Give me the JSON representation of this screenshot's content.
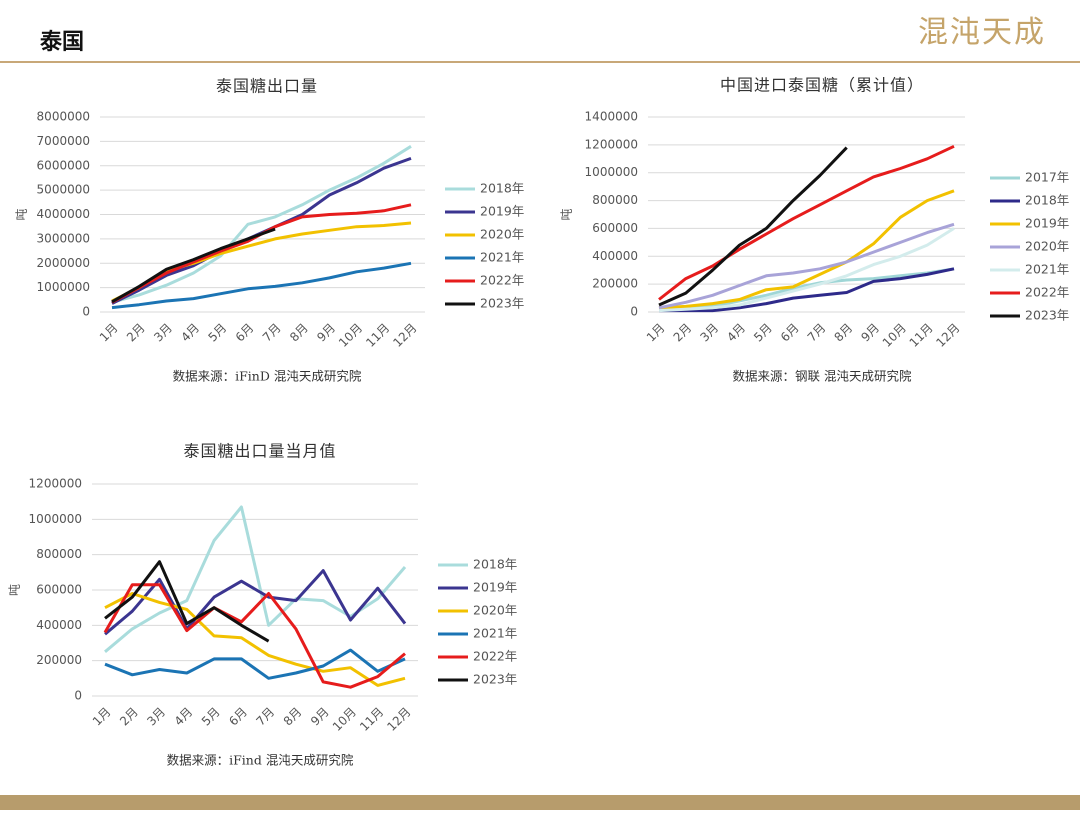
{
  "header": {
    "title": "泰国",
    "logo": "混沌天成"
  },
  "chart_data": [
    {
      "type": "line",
      "title": "泰国糖出口量",
      "y_label": "吨",
      "source": "数据来源：iFinD 混沌天成研究院",
      "categories": [
        "1月",
        "2月",
        "3月",
        "4月",
        "5月",
        "6月",
        "7月",
        "8月",
        "9月",
        "10月",
        "11月",
        "12月"
      ],
      "ylim": [
        0,
        8000000
      ],
      "yticks": [
        0,
        1000000,
        2000000,
        3000000,
        4000000,
        5000000,
        6000000,
        7000000,
        8000000
      ],
      "grid": true,
      "series": [
        {
          "name": "2018年",
          "color": "#a9dcdc",
          "values": [
            400000,
            700000,
            1100000,
            1600000,
            2300000,
            3600000,
            3900000,
            4400000,
            5000000,
            5500000,
            6100000,
            6800000
          ]
        },
        {
          "name": "2019年",
          "color": "#3b3590",
          "values": [
            350000,
            900000,
            1500000,
            1900000,
            2500000,
            3000000,
            3500000,
            4000000,
            4800000,
            5300000,
            5900000,
            6300000
          ]
        },
        {
          "name": "2020年",
          "color": "#f2c100",
          "values": [
            450000,
            1000000,
            1700000,
            2000000,
            2400000,
            2700000,
            3000000,
            3200000,
            3350000,
            3500000,
            3550000,
            3650000
          ]
        },
        {
          "name": "2021年",
          "color": "#1b74b4",
          "values": [
            180000,
            300000,
            450000,
            550000,
            750000,
            950000,
            1050000,
            1200000,
            1400000,
            1650000,
            1800000,
            2000000
          ]
        },
        {
          "name": "2022年",
          "color": "#e61c1c",
          "values": [
            400000,
            1000000,
            1600000,
            2050000,
            2500000,
            2900000,
            3500000,
            3900000,
            4000000,
            4050000,
            4150000,
            4400000
          ]
        },
        {
          "name": "2023年",
          "color": "#111111",
          "values": [
            420000,
            1050000,
            1750000,
            2150000,
            2600000,
            3000000,
            3400000,
            null,
            null,
            null,
            null,
            null
          ]
        }
      ]
    },
    {
      "type": "line",
      "title": "中国进口泰国糖（累计值）",
      "y_label": "吨",
      "source": "数据来源：钢联 混沌天成研究院",
      "categories": [
        "1月",
        "2月",
        "3月",
        "4月",
        "5月",
        "6月",
        "7月",
        "8月",
        "9月",
        "10月",
        "11月",
        "12月"
      ],
      "ylim": [
        0,
        1400000
      ],
      "yticks": [
        0,
        200000,
        400000,
        600000,
        800000,
        1000000,
        1200000,
        1400000
      ],
      "grid": true,
      "series": [
        {
          "name": "2017年",
          "color": "#9fd6d6",
          "values": [
            20000,
            30000,
            40000,
            80000,
            120000,
            170000,
            210000,
            230000,
            240000,
            260000,
            280000,
            310000
          ]
        },
        {
          "name": "2018年",
          "color": "#2e2a8a",
          "values": [
            10000,
            10000,
            10000,
            30000,
            60000,
            100000,
            120000,
            140000,
            220000,
            240000,
            270000,
            310000
          ]
        },
        {
          "name": "2019年",
          "color": "#f2c100",
          "values": [
            30000,
            40000,
            60000,
            90000,
            160000,
            180000,
            270000,
            360000,
            490000,
            680000,
            800000,
            870000
          ]
        },
        {
          "name": "2020年",
          "color": "#a8a3d8",
          "values": [
            30000,
            70000,
            120000,
            190000,
            260000,
            280000,
            310000,
            360000,
            430000,
            500000,
            570000,
            630000
          ]
        },
        {
          "name": "2021年",
          "color": "#d3ecec",
          "values": [
            10000,
            20000,
            30000,
            50000,
            100000,
            150000,
            200000,
            260000,
            340000,
            400000,
            480000,
            600000
          ]
        },
        {
          "name": "2022年",
          "color": "#e61c1c",
          "values": [
            90000,
            240000,
            330000,
            450000,
            560000,
            670000,
            770000,
            870000,
            970000,
            1030000,
            1100000,
            1190000
          ]
        },
        {
          "name": "2023年",
          "color": "#111111",
          "values": [
            50000,
            136000,
            300000,
            480000,
            600000,
            800000,
            980000,
            1180000,
            null,
            null,
            null,
            null
          ]
        }
      ]
    },
    {
      "type": "line",
      "title": "泰国糖出口量当月值",
      "y_label": "吨",
      "source": "数据来源：iFind 混沌天成研究院",
      "categories": [
        "1月",
        "2月",
        "3月",
        "4月",
        "5月",
        "6月",
        "7月",
        "8月",
        "9月",
        "10月",
        "11月",
        "12月"
      ],
      "ylim": [
        0,
        1200000
      ],
      "yticks": [
        0,
        200000,
        400000,
        600000,
        800000,
        1000000,
        1200000
      ],
      "grid": true,
      "series": [
        {
          "name": "2018年",
          "color": "#a9dcdc",
          "values": [
            250000,
            380000,
            470000,
            540000,
            880000,
            1070000,
            400000,
            550000,
            540000,
            450000,
            550000,
            730000
          ]
        },
        {
          "name": "2019年",
          "color": "#3b3590",
          "values": [
            350000,
            480000,
            660000,
            380000,
            560000,
            650000,
            560000,
            540000,
            710000,
            430000,
            610000,
            410000
          ]
        },
        {
          "name": "2020年",
          "color": "#f2c100",
          "values": [
            500000,
            580000,
            530000,
            490000,
            340000,
            330000,
            230000,
            180000,
            140000,
            160000,
            60000,
            100000
          ]
        },
        {
          "name": "2021年",
          "color": "#1b74b4",
          "values": [
            180000,
            120000,
            150000,
            130000,
            210000,
            210000,
            100000,
            130000,
            170000,
            260000,
            140000,
            210000
          ]
        },
        {
          "name": "2022年",
          "color": "#e61c1c",
          "values": [
            360000,
            630000,
            630000,
            370000,
            500000,
            420000,
            580000,
            380000,
            80000,
            50000,
            110000,
            240000
          ]
        },
        {
          "name": "2023年",
          "color": "#111111",
          "values": [
            440000,
            560000,
            760000,
            410000,
            500000,
            400000,
            310000,
            null,
            null,
            null,
            null,
            null
          ]
        }
      ]
    }
  ]
}
